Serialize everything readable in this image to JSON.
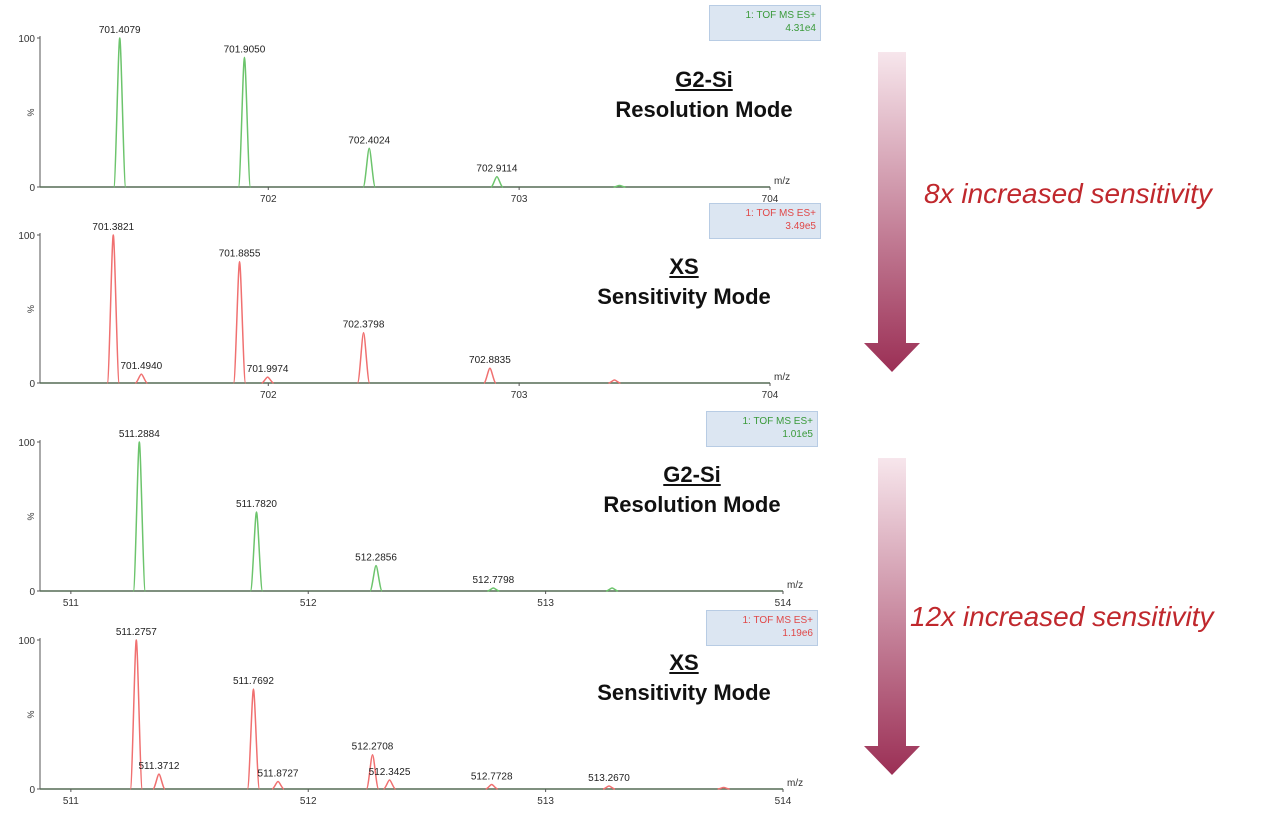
{
  "colors": {
    "resolution": "#6cc46c",
    "sensitivity": "#f07070",
    "arrow_top": "#f6e3ea",
    "arrow_bottom": "#9b2f55",
    "sensitivity_text": "#c0282d"
  },
  "annotations": {
    "comparison_1": {
      "instrument_a": "G2-Si",
      "mode_a": "Resolution Mode",
      "instrument_b": "XS",
      "mode_b": "Sensitivity Mode",
      "gain": "8x increased sensitivity"
    },
    "comparison_2": {
      "instrument_a": "G2-Si",
      "mode_a": "Resolution Mode",
      "instrument_b": "XS",
      "mode_b": "Sensitivity Mode",
      "gain": "12x increased sensitivity"
    }
  },
  "chart_data": [
    {
      "type": "line",
      "series_color": "resolution",
      "info_line1": "1: TOF MS ES+",
      "info_line2": "4.31e4",
      "xlabel": "m/z",
      "ylabel": "%",
      "xlim": [
        701.09,
        704
      ],
      "ylim": [
        0,
        100
      ],
      "xticks": [
        702,
        703,
        704
      ],
      "yticks": [
        0,
        100
      ],
      "peaks": [
        {
          "mz": 701.4079,
          "pct": 100,
          "label": "701.4079"
        },
        {
          "mz": 701.905,
          "pct": 87,
          "label": "701.9050"
        },
        {
          "mz": 702.4024,
          "pct": 26,
          "label": "702.4024"
        },
        {
          "mz": 702.9114,
          "pct": 7,
          "label": "702.9114"
        },
        {
          "mz": 703.4,
          "pct": 1,
          "label": ""
        }
      ]
    },
    {
      "type": "line",
      "series_color": "sensitivity",
      "info_line1": "1: TOF MS ES+",
      "info_line2": "3.49e5",
      "xlabel": "m/z",
      "ylabel": "%",
      "xlim": [
        701.09,
        704
      ],
      "ylim": [
        0,
        100
      ],
      "xticks": [
        702,
        703,
        704
      ],
      "yticks": [
        0,
        100
      ],
      "peaks": [
        {
          "mz": 701.3821,
          "pct": 100,
          "label": "701.3821"
        },
        {
          "mz": 701.494,
          "pct": 6,
          "label": "701.4940"
        },
        {
          "mz": 701.8855,
          "pct": 82,
          "label": "701.8855"
        },
        {
          "mz": 701.9974,
          "pct": 4,
          "label": "701.9974"
        },
        {
          "mz": 702.3798,
          "pct": 34,
          "label": "702.3798"
        },
        {
          "mz": 702.8835,
          "pct": 10,
          "label": "702.8835"
        },
        {
          "mz": 703.38,
          "pct": 2,
          "label": ""
        }
      ]
    },
    {
      "type": "line",
      "series_color": "resolution",
      "info_line1": "1: TOF MS ES+",
      "info_line2": "1.01e5",
      "xlabel": "m/z",
      "ylabel": "%",
      "xlim": [
        510.87,
        514
      ],
      "ylim": [
        0,
        100
      ],
      "xticks": [
        511,
        512,
        513,
        514
      ],
      "yticks": [
        0,
        100
      ],
      "peaks": [
        {
          "mz": 511.2884,
          "pct": 100,
          "label": "511.2884"
        },
        {
          "mz": 511.782,
          "pct": 53,
          "label": "511.7820"
        },
        {
          "mz": 512.2856,
          "pct": 17,
          "label": "512.2856"
        },
        {
          "mz": 512.7798,
          "pct": 2,
          "label": "512.7798"
        },
        {
          "mz": 513.28,
          "pct": 2,
          "label": ""
        }
      ]
    },
    {
      "type": "line",
      "series_color": "sensitivity",
      "info_line1": "1: TOF MS ES+",
      "info_line2": "1.19e6",
      "xlabel": "m/z",
      "ylabel": "%",
      "xlim": [
        510.87,
        514
      ],
      "ylim": [
        0,
        100
      ],
      "xticks": [
        511,
        512,
        513,
        514
      ],
      "yticks": [
        0,
        100
      ],
      "peaks": [
        {
          "mz": 511.2757,
          "pct": 100,
          "label": "511.2757"
        },
        {
          "mz": 511.3712,
          "pct": 10,
          "label": "511.3712"
        },
        {
          "mz": 511.7692,
          "pct": 67,
          "label": "511.7692"
        },
        {
          "mz": 511.8727,
          "pct": 5,
          "label": "511.8727"
        },
        {
          "mz": 512.2708,
          "pct": 23,
          "label": "512.2708"
        },
        {
          "mz": 512.3425,
          "pct": 6,
          "label": "512.3425"
        },
        {
          "mz": 512.7728,
          "pct": 3,
          "label": "512.7728"
        },
        {
          "mz": 513.267,
          "pct": 2,
          "label": "513.2670"
        },
        {
          "mz": 513.75,
          "pct": 1,
          "label": ""
        }
      ]
    }
  ]
}
